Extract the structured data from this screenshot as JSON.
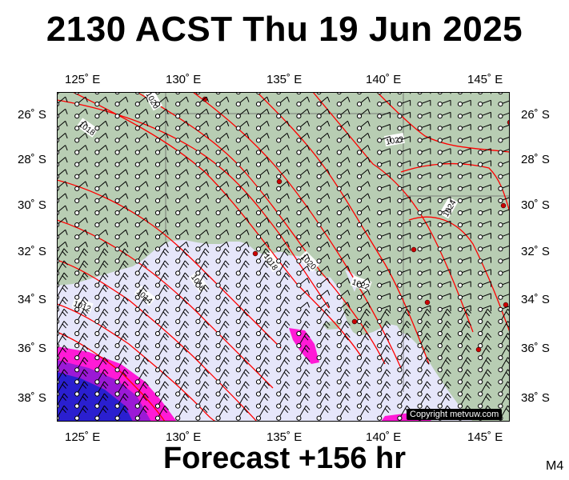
{
  "title": "2130 ACST Thu 19 Jun 2025",
  "footer": "Forecast +156 hr",
  "model_code": "M4",
  "copyright": "Copyright metvuw.com",
  "lon_labels": [
    "125˚ E",
    "130˚ E",
    "135˚ E",
    "140˚ E",
    "145˚ E"
  ],
  "lat_labels": [
    "26˚ S",
    "28˚ S",
    "30˚ S",
    "32˚ S",
    "34˚ S",
    "36˚ S",
    "38˚ S"
  ],
  "isobar_labels": [
    "1020",
    "1018",
    "1022",
    "1024",
    "1018",
    "1020",
    "1016",
    "1014",
    "1012",
    "1022"
  ],
  "colors": {
    "land": "#b8cdb3",
    "sea": "#e6e6fa",
    "isobar": "#ff0000",
    "rain_heavy": "#2a1fd0",
    "rain_mid": "#9b19d6",
    "rain_light": "#ff1ad6"
  }
}
